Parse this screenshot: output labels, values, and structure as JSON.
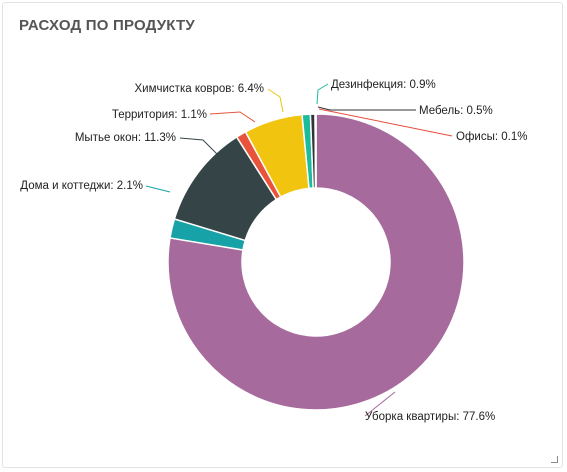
{
  "widget": {
    "title": "РАСХОД ПО ПРОДУКТУ"
  },
  "chart_data": {
    "type": "pie",
    "hole": true,
    "legend": "none",
    "slices": [
      {
        "label": "Уборка квартиры",
        "value": 77.6,
        "display": "77.6%",
        "color": "#a66a9c",
        "line_color": "#a66a9c"
      },
      {
        "label": "Дома и коттеджи",
        "value": 2.1,
        "display": "2.1%",
        "color": "#17a2a8",
        "line_color": "#17a2a8"
      },
      {
        "label": "Мытье окон",
        "value": 11.3,
        "display": "11.3%",
        "color": "#354547",
        "line_color": "#354547"
      },
      {
        "label": "Территория",
        "value": 1.1,
        "display": "1.1%",
        "color": "#e8533c",
        "line_color": "#e8533c"
      },
      {
        "label": "Химчистка ковров",
        "value": 6.4,
        "display": "6.4%",
        "color": "#f1c40f",
        "line_color": "#f1c40f"
      },
      {
        "label": "Дезинфекция",
        "value": 0.9,
        "display": "0.9%",
        "color": "#1abc9c",
        "line_color": "#1abc9c"
      },
      {
        "label": "Мебель",
        "value": 0.5,
        "display": "0.5%",
        "color": "#333333",
        "line_color": "#333333"
      },
      {
        "label": "Офисы",
        "value": 0.1,
        "display": "0.1%",
        "color": "#e74c3c",
        "line_color": "#e74c3c"
      }
    ]
  }
}
